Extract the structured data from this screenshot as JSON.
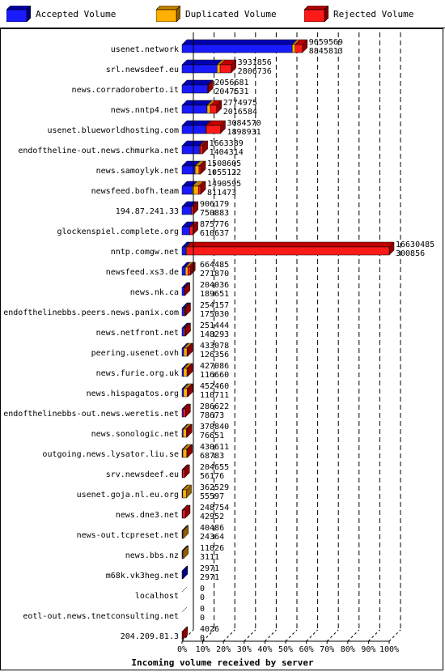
{
  "legend": [
    {
      "label": "Accepted Volume",
      "color": "#1a1aff"
    },
    {
      "label": "Duplicated Volume",
      "color": "#ffb000"
    },
    {
      "label": "Rejected Volume",
      "color": "#ff1a1a"
    }
  ],
  "chart_data": {
    "type": "bar",
    "orientation": "horizontal",
    "stacked": true,
    "xlabel": "Incoming volume received by server",
    "x_ticks": [
      "0%",
      "10%",
      "20%",
      "30%",
      "40%",
      "50%",
      "60%",
      "70%",
      "80%",
      "90%",
      "100%"
    ],
    "xlim": [
      0,
      100
    ],
    "colors": {
      "accepted": "#1a1aff",
      "duplicated": "#ffb000",
      "rejected": "#ff1a1a"
    },
    "servers": [
      {
        "name": "usenet.network",
        "total_label": "9659569",
        "accepted_label": "8845813",
        "accepted": 53.2,
        "duplicated": 1.4,
        "rejected": 3.5
      },
      {
        "name": "srl.newsdeef.eu",
        "total_label": "3931856",
        "accepted_label": "2806736",
        "accepted": 16.9,
        "duplicated": 1.5,
        "rejected": 5.3
      },
      {
        "name": "news.corradoroberto.it",
        "total_label": "2056681",
        "accepted_label": "2047531",
        "accepted": 12.3,
        "duplicated": 0.0,
        "rejected": 0.1
      },
      {
        "name": "news.nntp4.net",
        "total_label": "2774975",
        "accepted_label": "2016584",
        "accepted": 12.1,
        "duplicated": 1.6,
        "rejected": 3.0
      },
      {
        "name": "usenet.blueworldhosting.com",
        "total_label": "3084570",
        "accepted_label": "1898931",
        "accepted": 11.4,
        "duplicated": 0.3,
        "rejected": 6.8
      },
      {
        "name": "endoftheline-out.news.chmurka.net",
        "total_label": "1663389",
        "accepted_label": "1404314",
        "accepted": 8.4,
        "duplicated": 0.4,
        "rejected": 1.2
      },
      {
        "name": "news.samoylyk.net",
        "total_label": "1508605",
        "accepted_label": "1055122",
        "accepted": 6.3,
        "duplicated": 1.9,
        "rejected": 0.8
      },
      {
        "name": "newsfeed.bofh.team",
        "total_label": "1490595",
        "accepted_label": "811473",
        "accepted": 4.9,
        "duplicated": 3.0,
        "rejected": 1.1
      },
      {
        "name": "194.87.241.33",
        "total_label": "906179",
        "accepted_label": "750883",
        "accepted": 4.5,
        "duplicated": 0.0,
        "rejected": 0.9
      },
      {
        "name": "glockenspiel.complete.org",
        "total_label": "875776",
        "accepted_label": "610637",
        "accepted": 3.7,
        "duplicated": 0.0,
        "rejected": 1.6
      },
      {
        "name": "nntp.comgw.net",
        "total_label": "16630485",
        "accepted_label": "300856",
        "accepted": 1.8,
        "duplicated": 0.4,
        "rejected": 97.8
      },
      {
        "name": "newsfeed.xs3.de",
        "total_label": "664485",
        "accepted_label": "271870",
        "accepted": 1.6,
        "duplicated": 1.3,
        "rejected": 1.1
      },
      {
        "name": "news.nk.ca",
        "total_label": "204036",
        "accepted_label": "189651",
        "accepted": 1.1,
        "duplicated": 0.0,
        "rejected": 0.1
      },
      {
        "name": "endofthelinebbs.peers.news.panix.com",
        "total_label": "254157",
        "accepted_label": "175030",
        "accepted": 1.0,
        "duplicated": 0.1,
        "rejected": 0.4
      },
      {
        "name": "news.netfront.net",
        "total_label": "251444",
        "accepted_label": "148293",
        "accepted": 0.9,
        "duplicated": 0.1,
        "rejected": 0.5
      },
      {
        "name": "peering.usenet.ovh",
        "total_label": "433078",
        "accepted_label": "126356",
        "accepted": 0.8,
        "duplicated": 1.6,
        "rejected": 0.2
      },
      {
        "name": "news.furie.org.uk",
        "total_label": "427086",
        "accepted_label": "116660",
        "accepted": 0.7,
        "duplicated": 1.7,
        "rejected": 0.2
      },
      {
        "name": "news.hispagatos.org",
        "total_label": "452460",
        "accepted_label": "110711",
        "accepted": 0.7,
        "duplicated": 1.8,
        "rejected": 0.2
      },
      {
        "name": "endofthelinebbs-out.news.weretis.net",
        "total_label": "286622",
        "accepted_label": "78673",
        "accepted": 0.5,
        "duplicated": 0.0,
        "rejected": 1.2
      },
      {
        "name": "news.sonologic.net",
        "total_label": "370840",
        "accepted_label": "76651",
        "accepted": 0.5,
        "duplicated": 1.6,
        "rejected": 0.1
      },
      {
        "name": "outgoing.news.lysator.liu.se",
        "total_label": "430611",
        "accepted_label": "68783",
        "accepted": 0.4,
        "duplicated": 1.9,
        "rejected": 0.2
      },
      {
        "name": "srv.newsdeef.eu",
        "total_label": "204655",
        "accepted_label": "56176",
        "accepted": 0.3,
        "duplicated": 0.0,
        "rejected": 0.9
      },
      {
        "name": "usenet.goja.nl.eu.org",
        "total_label": "362529",
        "accepted_label": "55597",
        "accepted": 0.3,
        "duplicated": 1.8,
        "rejected": 0.0
      },
      {
        "name": "news.dne3.net",
        "total_label": "248754",
        "accepted_label": "42952",
        "accepted": 0.3,
        "duplicated": 0.0,
        "rejected": 1.2
      },
      {
        "name": "news-out.tcpreset.net",
        "total_label": "40486",
        "accepted_label": "24364",
        "accepted": 0.1,
        "duplicated": 0.1,
        "rejected": 0.0
      },
      {
        "name": "news.bbs.nz",
        "total_label": "11026",
        "accepted_label": "3111",
        "accepted": 0.02,
        "duplicated": 0.05,
        "rejected": 0.0
      },
      {
        "name": "m68k.vk3heg.net",
        "total_label": "2971",
        "accepted_label": "2971",
        "accepted": 0.02,
        "duplicated": 0.0,
        "rejected": 0.0
      },
      {
        "name": "localhost",
        "total_label": "0",
        "accepted_label": "0",
        "accepted": 0,
        "duplicated": 0,
        "rejected": 0
      },
      {
        "name": "eotl-out.news.tnetconsulting.net",
        "total_label": "0",
        "accepted_label": "0",
        "accepted": 0,
        "duplicated": 0,
        "rejected": 0
      },
      {
        "name": "204.209.81.3",
        "total_label": "4026",
        "accepted_label": "0",
        "accepted": 0,
        "duplicated": 0,
        "rejected": 0.02
      }
    ]
  }
}
